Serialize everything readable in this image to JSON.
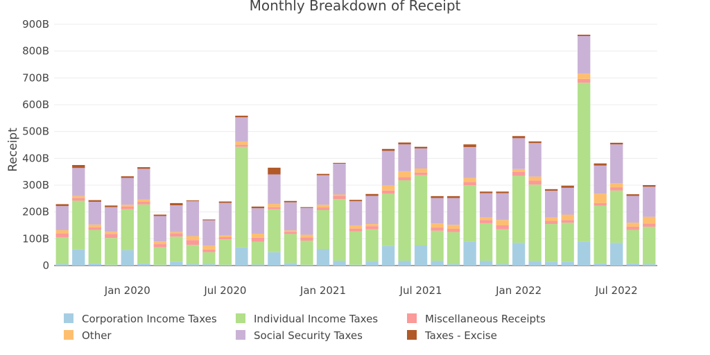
{
  "chart_data": {
    "type": "bar",
    "stacked": true,
    "title": "Monthly Breakdown of Receipt",
    "ylabel": "Receipt",
    "ylim": [
      0,
      900
    ],
    "y_unit": "B",
    "yticks": [
      "0",
      "100B",
      "200B",
      "300B",
      "400B",
      "500B",
      "600B",
      "700B",
      "800B",
      "900B"
    ],
    "xtick_labels": [
      {
        "label": "Jan 2020",
        "index": 4
      },
      {
        "label": "Jul 2020",
        "index": 10
      },
      {
        "label": "Jan 2021",
        "index": 16
      },
      {
        "label": "Jul 2021",
        "index": 22
      },
      {
        "label": "Jan 2022",
        "index": 28
      },
      {
        "label": "Jul 2022",
        "index": 34
      }
    ],
    "grid": true,
    "legend_position": "bottom",
    "categories": [
      "2019-09",
      "2019-10",
      "2019-11",
      "2019-12",
      "2020-01",
      "2020-02",
      "2020-03",
      "2020-04",
      "2020-05",
      "2020-06",
      "2020-07",
      "2020-08",
      "2020-09",
      "2020-10",
      "2020-11",
      "2020-12",
      "2021-01",
      "2021-02",
      "2021-03",
      "2021-04",
      "2021-05",
      "2021-06",
      "2021-07",
      "2021-08",
      "2021-09",
      "2021-10",
      "2021-11",
      "2021-12",
      "2022-01",
      "2022-02",
      "2022-03",
      "2022-04",
      "2022-05",
      "2022-06",
      "2022-07",
      "2022-08",
      "2022-09"
    ],
    "series": [
      {
        "name": "Corporation Income Taxes",
        "color": "#a6cee3",
        "values": [
          5,
          60,
          8,
          3,
          58,
          8,
          3,
          15,
          5,
          5,
          3,
          68,
          4,
          50,
          10,
          3,
          62,
          18,
          3,
          17,
          73,
          18,
          75,
          18,
          5,
          90,
          18,
          5,
          85,
          17,
          15,
          15,
          90,
          8,
          85,
          8,
          5
        ]
      },
      {
        "name": "Individual Income Taxes",
        "color": "#b2df8a",
        "values": [
          100,
          182,
          125,
          100,
          152,
          220,
          65,
          93,
          72,
          45,
          95,
          375,
          85,
          160,
          108,
          90,
          145,
          230,
          125,
          118,
          195,
          300,
          262,
          112,
          120,
          210,
          140,
          130,
          250,
          285,
          140,
          145,
          592,
          215,
          195,
          125,
          140
        ]
      },
      {
        "name": "Miscellaneous Receipts",
        "color": "#fb9a99",
        "values": [
          15,
          10,
          10,
          15,
          10,
          10,
          12,
          12,
          18,
          10,
          8,
          8,
          15,
          8,
          8,
          12,
          10,
          12,
          10,
          12,
          12,
          12,
          10,
          12,
          12,
          12,
          12,
          15,
          15,
          15,
          12,
          10,
          14,
          10,
          12,
          12,
          12
        ]
      },
      {
        "name": "Other",
        "color": "#fdbf6f",
        "values": [
          12,
          7,
          10,
          8,
          7,
          8,
          10,
          5,
          15,
          14,
          6,
          12,
          15,
          12,
          5,
          10,
          10,
          5,
          12,
          8,
          18,
          22,
          15,
          15,
          15,
          15,
          10,
          20,
          10,
          15,
          12,
          20,
          20,
          35,
          15,
          15,
          25
        ]
      },
      {
        "name": "Social Security Taxes",
        "color": "#cab2d6",
        "values": [
          90,
          105,
          85,
          92,
          100,
          115,
          95,
          100,
          130,
          95,
          122,
          90,
          95,
          110,
          105,
          100,
          110,
          115,
          90,
          105,
          130,
          100,
          75,
          95,
          100,
          115,
          90,
          100,
          115,
          125,
          100,
          100,
          140,
          105,
          145,
          100,
          112
        ]
      },
      {
        "name": "Taxes - Excise",
        "color": "#b15928",
        "values": [
          7,
          11,
          6,
          6,
          6,
          6,
          5,
          8,
          3,
          3,
          5,
          6,
          6,
          25,
          5,
          3,
          5,
          3,
          5,
          7,
          7,
          7,
          6,
          7,
          7,
          10,
          6,
          6,
          8,
          6,
          6,
          8,
          5,
          8,
          6,
          6,
          6
        ]
      }
    ]
  }
}
